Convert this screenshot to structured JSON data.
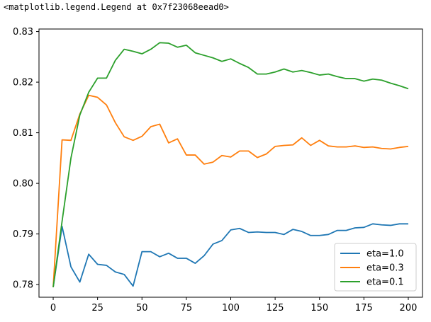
{
  "output_text": "<matplotlib.legend.Legend at 0x7f23068eead0>",
  "chart_data": {
    "type": "line",
    "title": "",
    "xlabel": "",
    "ylabel": "",
    "xlim": [
      -8,
      208
    ],
    "ylim": [
      0.7775,
      0.8305
    ],
    "xticks": [
      0,
      25,
      50,
      75,
      100,
      125,
      150,
      175,
      200
    ],
    "yticks": [
      0.78,
      0.79,
      0.8,
      0.81,
      0.82,
      0.83
    ],
    "ytick_labels": [
      "0.78",
      "0.79",
      "0.80",
      "0.81",
      "0.82",
      "0.83"
    ],
    "grid": false,
    "legend": "lower-right",
    "series": [
      {
        "name": "eta=1.0",
        "color": "#1f77b4",
        "x": [
          0,
          5,
          10,
          15,
          20,
          25,
          30,
          35,
          40,
          45,
          50,
          55,
          60,
          65,
          70,
          75,
          80,
          85,
          90,
          95,
          100,
          105,
          110,
          115,
          120,
          125,
          130,
          135,
          140,
          145,
          150,
          155,
          160,
          165,
          170,
          175,
          180,
          185,
          190,
          195,
          200
        ],
        "values": [
          0.7795,
          0.7915,
          0.7835,
          0.7805,
          0.786,
          0.784,
          0.7838,
          0.7825,
          0.782,
          0.7797,
          0.7865,
          0.7865,
          0.7855,
          0.7862,
          0.7852,
          0.7852,
          0.7842,
          0.7857,
          0.788,
          0.7887,
          0.7908,
          0.7911,
          0.7903,
          0.7904,
          0.7903,
          0.7903,
          0.7899,
          0.7909,
          0.7905,
          0.7897,
          0.7897,
          0.7899,
          0.7907,
          0.7907,
          0.7912,
          0.7913,
          0.792,
          0.7918,
          0.7917,
          0.792,
          0.792
        ]
      },
      {
        "name": "eta=0.3",
        "color": "#ff7f0e",
        "x": [
          0,
          5,
          10,
          15,
          20,
          25,
          30,
          35,
          40,
          45,
          50,
          55,
          60,
          65,
          70,
          75,
          80,
          85,
          90,
          95,
          100,
          105,
          110,
          115,
          120,
          125,
          130,
          135,
          140,
          145,
          150,
          155,
          160,
          165,
          170,
          175,
          180,
          185,
          190,
          195,
          200
        ],
        "values": [
          0.7795,
          0.8086,
          0.8085,
          0.8137,
          0.8174,
          0.817,
          0.8155,
          0.812,
          0.8092,
          0.8085,
          0.8093,
          0.8112,
          0.8117,
          0.808,
          0.8088,
          0.8056,
          0.8056,
          0.8038,
          0.8042,
          0.8055,
          0.8052,
          0.8064,
          0.8064,
          0.8051,
          0.8058,
          0.8073,
          0.8075,
          0.8076,
          0.809,
          0.8075,
          0.8085,
          0.8074,
          0.8072,
          0.8072,
          0.8074,
          0.8071,
          0.8072,
          0.8069,
          0.8068,
          0.8071,
          0.8073
        ]
      },
      {
        "name": "eta=0.1",
        "color": "#2ca02c",
        "x": [
          0,
          5,
          10,
          15,
          20,
          25,
          30,
          35,
          40,
          45,
          50,
          55,
          60,
          65,
          70,
          75,
          80,
          85,
          90,
          95,
          100,
          105,
          110,
          115,
          120,
          125,
          130,
          135,
          140,
          145,
          150,
          155,
          160,
          165,
          170,
          175,
          180,
          185,
          190,
          195,
          200
        ],
        "values": [
          0.7795,
          0.7925,
          0.805,
          0.8135,
          0.818,
          0.8208,
          0.8208,
          0.8243,
          0.8265,
          0.8261,
          0.8256,
          0.8265,
          0.8278,
          0.8277,
          0.8269,
          0.8273,
          0.8258,
          0.8253,
          0.8248,
          0.8241,
          0.8246,
          0.8237,
          0.8229,
          0.8216,
          0.8216,
          0.822,
          0.8226,
          0.822,
          0.8223,
          0.8219,
          0.8214,
          0.8216,
          0.8211,
          0.8207,
          0.8207,
          0.8202,
          0.8206,
          0.8204,
          0.8198,
          0.8193,
          0.8187
        ]
      }
    ]
  }
}
